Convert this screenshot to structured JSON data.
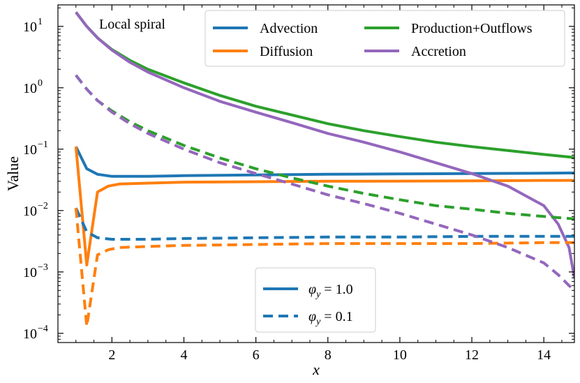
{
  "chart_data": {
    "type": "line",
    "annotation": "Local spiral",
    "xlabel": "x",
    "ylabel": "Value",
    "xlim": [
      0.5,
      14.85
    ],
    "ylim_log10": [
      -4.15,
      1.35
    ],
    "yscale": "log",
    "xticks": [
      2,
      4,
      6,
      8,
      10,
      12,
      14
    ],
    "xtick_labels": [
      "2",
      "4",
      "6",
      "8",
      "10",
      "12",
      "14"
    ],
    "ytick_exponents": [
      -4,
      -3,
      -2,
      -1,
      0,
      1
    ],
    "ytick_base": "10",
    "ytick_powers": [
      "−4",
      "−3",
      "−2",
      "−1",
      "0",
      "1"
    ],
    "legend_processes": [
      {
        "name": "Advection",
        "color": "#1f77b4"
      },
      {
        "name": "Diffusion",
        "color": "#ff7f0e"
      },
      {
        "name": "Production+Outflows",
        "color": "#2ca02c"
      },
      {
        "name": "Accretion",
        "color": "#9467bd"
      }
    ],
    "legend_styles": [
      {
        "label_main": "φ",
        "label_sub": "y",
        "label_rest": " = 1.0",
        "style": "solid"
      },
      {
        "label_main": "φ",
        "label_sub": "y",
        "label_rest": " = 0.1",
        "style": "dashed"
      }
    ],
    "series": [
      {
        "name": "Advection",
        "phi_y": "1.0",
        "color": "#1f77b4",
        "style": "solid",
        "x": [
          1.0,
          1.3,
          1.6,
          2.0,
          3,
          4,
          6,
          8,
          10,
          12,
          14,
          14.85
        ],
        "y": [
          0.11,
          0.048,
          0.039,
          0.036,
          0.036,
          0.037,
          0.038,
          0.039,
          0.0395,
          0.04,
          0.0405,
          0.041
        ]
      },
      {
        "name": "Diffusion",
        "phi_y": "1.0",
        "color": "#ff7f0e",
        "style": "solid",
        "x": [
          1.0,
          1.3,
          1.6,
          1.9,
          2.2,
          3,
          4,
          6,
          8,
          10,
          12,
          14,
          14.85
        ],
        "y": [
          0.11,
          0.0013,
          0.02,
          0.025,
          0.027,
          0.028,
          0.029,
          0.0295,
          0.03,
          0.0302,
          0.0305,
          0.031,
          0.031
        ]
      },
      {
        "name": "Production+Outflows",
        "phi_y": "1.0",
        "color": "#2ca02c",
        "style": "solid",
        "x": [
          1.0,
          1.3,
          1.6,
          2.0,
          2.5,
          3,
          4,
          5,
          6,
          7,
          8,
          9,
          10,
          11,
          12,
          13,
          14,
          14.85
        ],
        "y": [
          17,
          10,
          6.5,
          4.2,
          2.8,
          2.0,
          1.2,
          0.75,
          0.5,
          0.36,
          0.26,
          0.2,
          0.16,
          0.13,
          0.11,
          0.095,
          0.082,
          0.073
        ]
      },
      {
        "name": "Accretion",
        "phi_y": "1.0",
        "color": "#9467bd",
        "style": "solid",
        "x": [
          1.0,
          1.3,
          1.6,
          2.0,
          2.5,
          3,
          4,
          5,
          6,
          7,
          8,
          9,
          10,
          11,
          12,
          13,
          14,
          14.4,
          14.7,
          14.85
        ],
        "y": [
          17,
          10,
          6.5,
          4.1,
          2.6,
          1.8,
          1.0,
          0.6,
          0.4,
          0.27,
          0.18,
          0.13,
          0.09,
          0.06,
          0.04,
          0.025,
          0.012,
          0.006,
          0.0025,
          0.0008
        ]
      },
      {
        "name": "Advection",
        "phi_y": "0.1",
        "color": "#1f77b4",
        "style": "dashed",
        "x": [
          1.0,
          1.3,
          1.6,
          2.0,
          3,
          4,
          6,
          8,
          10,
          12,
          14,
          14.85
        ],
        "y": [
          0.011,
          0.0045,
          0.0036,
          0.0034,
          0.0034,
          0.0035,
          0.0036,
          0.0037,
          0.0037,
          0.0038,
          0.0038,
          0.0038
        ]
      },
      {
        "name": "Diffusion",
        "phi_y": "0.1",
        "color": "#ff7f0e",
        "style": "dashed",
        "x": [
          1.0,
          1.3,
          1.6,
          1.9,
          2.2,
          3,
          4,
          6,
          8,
          10,
          12,
          14,
          14.85
        ],
        "y": [
          0.011,
          0.00013,
          0.0019,
          0.0023,
          0.0025,
          0.0026,
          0.0027,
          0.0028,
          0.0029,
          0.0029,
          0.0029,
          0.003,
          0.003
        ]
      },
      {
        "name": "Production+Outflows",
        "phi_y": "0.1",
        "color": "#2ca02c",
        "style": "dashed",
        "x": [
          1.0,
          1.3,
          1.6,
          2.0,
          2.5,
          3,
          4,
          5,
          6,
          7,
          8,
          9,
          10,
          11,
          12,
          13,
          14,
          14.85
        ],
        "y": [
          1.6,
          0.95,
          0.62,
          0.42,
          0.28,
          0.2,
          0.115,
          0.072,
          0.048,
          0.034,
          0.025,
          0.019,
          0.015,
          0.012,
          0.0105,
          0.009,
          0.008,
          0.0073
        ]
      },
      {
        "name": "Accretion",
        "phi_y": "0.1",
        "color": "#9467bd",
        "style": "dashed",
        "x": [
          1.0,
          1.3,
          1.6,
          2.0,
          2.5,
          3,
          4,
          5,
          6,
          7,
          8,
          9,
          10,
          11,
          12,
          13,
          14,
          14.4,
          14.7,
          14.85
        ],
        "y": [
          1.6,
          0.95,
          0.62,
          0.4,
          0.26,
          0.18,
          0.1,
          0.06,
          0.04,
          0.027,
          0.018,
          0.013,
          0.009,
          0.006,
          0.004,
          0.0025,
          0.0014,
          0.0009,
          0.0006,
          0.0005
        ]
      }
    ]
  }
}
